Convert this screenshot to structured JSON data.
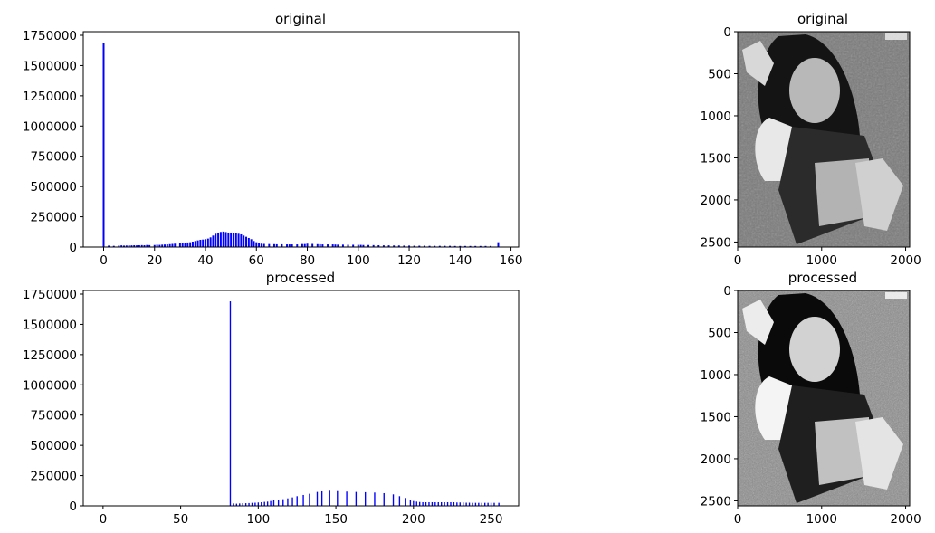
{
  "colors": {
    "bars": "#0000ff",
    "axes": "#000000",
    "background": "#ffffff"
  },
  "chart_data": [
    {
      "id": "hist_original",
      "type": "bar",
      "title": "original",
      "xlabel": "",
      "ylabel": "",
      "xlim": [
        -8,
        163
      ],
      "ylim": [
        0,
        1780000
      ],
      "grid": false,
      "legend": "none",
      "xticks": [
        0,
        20,
        40,
        60,
        80,
        100,
        120,
        140,
        160
      ],
      "xtick_labels": [
        "0",
        "20",
        "40",
        "60",
        "80",
        "100",
        "120",
        "140",
        "160"
      ],
      "yticks": [
        0,
        250000,
        500000,
        750000,
        1000000,
        1250000,
        1500000,
        1750000
      ],
      "ytick_labels": [
        "0",
        "250000",
        "500000",
        "750000",
        "1000000",
        "1250000",
        "1500000",
        "1750000"
      ],
      "bar_width": 0.7,
      "x": [
        0,
        2,
        4,
        6,
        7,
        8,
        9,
        10,
        11,
        12,
        13,
        14,
        15,
        16,
        17,
        18,
        20,
        21,
        22,
        23,
        24,
        25,
        26,
        27,
        28,
        30,
        31,
        32,
        33,
        34,
        35,
        36,
        37,
        38,
        39,
        40,
        41,
        42,
        43,
        44,
        45,
        46,
        47,
        48,
        49,
        50,
        51,
        52,
        53,
        54,
        55,
        56,
        57,
        58,
        59,
        60,
        61,
        62,
        63,
        65,
        67,
        68,
        70,
        72,
        73,
        74,
        76,
        78,
        79,
        80,
        82,
        84,
        85,
        86,
        88,
        90,
        91,
        92,
        94,
        96,
        98,
        100,
        101,
        102,
        104,
        106,
        108,
        110,
        112,
        114,
        116,
        118,
        120,
        122,
        124,
        126,
        128,
        130,
        132,
        134,
        136,
        138,
        140,
        142,
        144,
        146,
        148,
        150,
        152,
        155
      ],
      "y": [
        1690000,
        12000,
        10000,
        12000,
        14000,
        12000,
        13000,
        14000,
        14000,
        15000,
        14000,
        15000,
        16000,
        15000,
        17000,
        16000,
        17000,
        19000,
        18000,
        20000,
        21000,
        22000,
        24000,
        26000,
        28000,
        30000,
        33000,
        35000,
        38000,
        40000,
        45000,
        50000,
        55000,
        60000,
        62000,
        65000,
        70000,
        80000,
        95000,
        110000,
        120000,
        125000,
        128000,
        124000,
        120000,
        120000,
        118000,
        115000,
        110000,
        105000,
        95000,
        85000,
        75000,
        65000,
        50000,
        40000,
        32000,
        28000,
        26000,
        25000,
        24000,
        23000,
        23000,
        22000,
        22000,
        22000,
        22000,
        25000,
        25000,
        28000,
        26000,
        24000,
        23000,
        22000,
        22000,
        22000,
        21000,
        20000,
        20000,
        19000,
        19000,
        18000,
        18000,
        17000,
        17000,
        16000,
        15000,
        14000,
        14000,
        13000,
        13000,
        12000,
        12000,
        11000,
        11000,
        11000,
        10000,
        10000,
        10000,
        10000,
        10000,
        9000,
        9000,
        9000,
        9000,
        9000,
        9000,
        9000,
        9000,
        40000
      ]
    },
    {
      "id": "image_original",
      "type": "heatmap",
      "title": "original",
      "xticks": [
        0,
        1000,
        2000
      ],
      "xtick_labels": [
        "0",
        "1000",
        "2000"
      ],
      "yticks": [
        0,
        500,
        1000,
        1500,
        2000,
        2500
      ],
      "ytick_labels": [
        "0",
        "500",
        "1000",
        "1500",
        "2000",
        "2500"
      ],
      "xlim": [
        0,
        2048
      ],
      "ylim": [
        2560,
        0
      ],
      "colormap": "gray"
    },
    {
      "id": "hist_processed",
      "type": "bar",
      "title": "processed",
      "xlabel": "",
      "ylabel": "",
      "xlim": [
        -12.75,
        267.75
      ],
      "ylim": [
        0,
        1780000
      ],
      "grid": false,
      "legend": "none",
      "xticks": [
        0,
        50,
        100,
        150,
        200,
        250
      ],
      "xtick_labels": [
        "0",
        "50",
        "100",
        "150",
        "200",
        "250"
      ],
      "yticks": [
        0,
        250000,
        500000,
        750000,
        1000000,
        1250000,
        1500000,
        1750000
      ],
      "ytick_labels": [
        "0",
        "250000",
        "500000",
        "750000",
        "1000000",
        "1250000",
        "1500000",
        "1750000"
      ],
      "bar_width": 0.8,
      "x": [
        82,
        84,
        86,
        88,
        90,
        92,
        94,
        96,
        98,
        100,
        102,
        104,
        106,
        108,
        110,
        113,
        116,
        119,
        122,
        125,
        129,
        133,
        138,
        141,
        146,
        151,
        157,
        163,
        169,
        175,
        181,
        187,
        191,
        195,
        198,
        200,
        202,
        204,
        206,
        208,
        210,
        212,
        214,
        216,
        218,
        220,
        222,
        224,
        226,
        228,
        230,
        232,
        234,
        236,
        238,
        240,
        242,
        244,
        246,
        248,
        250,
        252,
        255
      ],
      "y": [
        1690000,
        20000,
        18000,
        20000,
        22000,
        22000,
        23000,
        25000,
        26000,
        28000,
        30000,
        33000,
        35000,
        40000,
        45000,
        50000,
        55000,
        62000,
        70000,
        80000,
        90000,
        100000,
        115000,
        120000,
        125000,
        122000,
        118000,
        115000,
        113000,
        110000,
        105000,
        95000,
        80000,
        65000,
        50000,
        40000,
        35000,
        32000,
        30000,
        30000,
        30000,
        30000,
        30000,
        30000,
        30000,
        30000,
        30000,
        30000,
        30000,
        28000,
        28000,
        28000,
        26000,
        26000,
        25000,
        25000,
        25000,
        25000,
        25000,
        25000,
        25000,
        25000,
        25000
      ]
    },
    {
      "id": "image_processed",
      "type": "heatmap",
      "title": "processed",
      "xticks": [
        0,
        1000,
        2000
      ],
      "xtick_labels": [
        "0",
        "1000",
        "2000"
      ],
      "yticks": [
        0,
        500,
        1000,
        1500,
        2000,
        2500
      ],
      "ytick_labels": [
        "0",
        "500",
        "1000",
        "1500",
        "2000",
        "2500"
      ],
      "xlim": [
        0,
        2048
      ],
      "ylim": [
        2560,
        0
      ],
      "colormap": "gray"
    }
  ]
}
